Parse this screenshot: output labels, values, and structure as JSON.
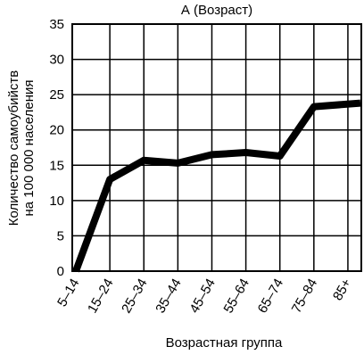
{
  "chart_data": {
    "type": "line",
    "title": "А (Возраст)",
    "xlabel": "Возрастная группа",
    "ylabel_lines": [
      "Количество самоубийств",
      "на 100 000 населения"
    ],
    "categories": [
      "5–14",
      "15–24",
      "25–34",
      "35–44",
      "45–54",
      "55–64",
      "65–74",
      "75–84",
      "85+"
    ],
    "values": [
      0,
      13,
      15.7,
      15.3,
      16.5,
      16.8,
      16.3,
      23.3,
      23.8
    ],
    "yticks": [
      "0",
      "5",
      "10",
      "15",
      "20",
      "25",
      "30",
      "35"
    ],
    "ylim": [
      0,
      35
    ],
    "grid": true,
    "line_color": "#000000"
  }
}
